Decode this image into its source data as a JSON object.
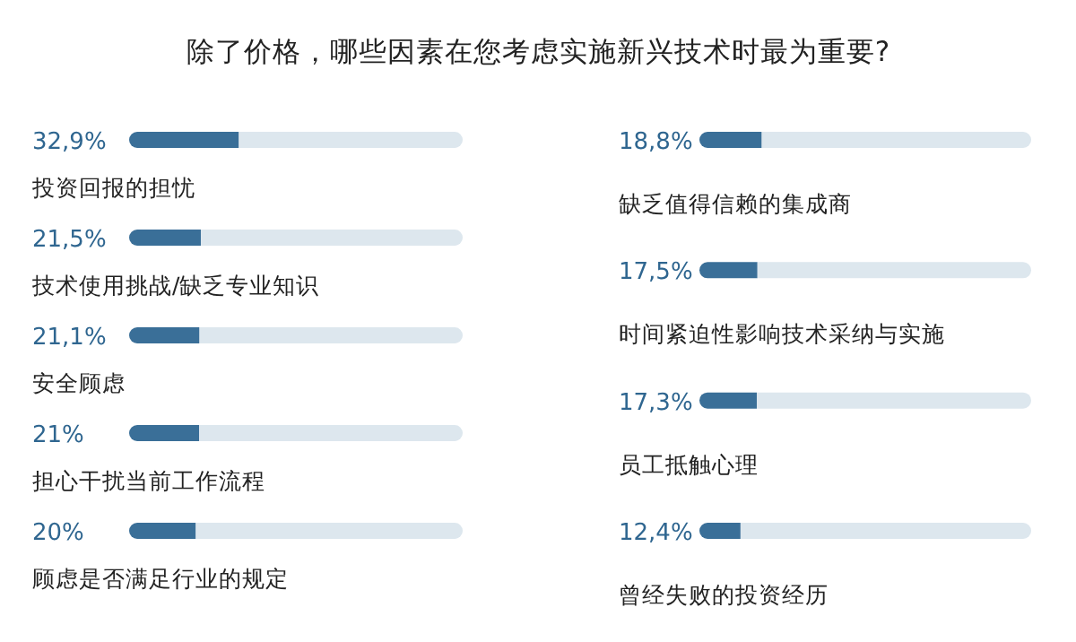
{
  "chart_data": [
    {
      "type": "bar",
      "orientation": "horizontal",
      "stacked": true,
      "title": "除了价格，哪些因素在您考虑实施新兴技术时最为重要?",
      "categories": [
        "投资回报的担忧",
        "技术使用挑战/缺乏专业知识",
        "安全顾虑",
        "担心干扰当前工作流程",
        "顾虑是否满足行业的规定"
      ],
      "series": [
        {
          "color": "#3a6f98",
          "values": [
            32.9,
            21.5,
            21.1,
            21,
            20
          ],
          "value_labels": [
            "32,9%",
            "21,5%",
            "21,1%",
            "21%",
            "20%"
          ]
        },
        {
          "color": "#dde7ee",
          "values": [
            67.1,
            78.5,
            78.9,
            79,
            80
          ]
        }
      ],
      "xlim": [
        0,
        100
      ]
    },
    {
      "type": "bar",
      "orientation": "horizontal",
      "stacked": true,
      "categories": [
        "缺乏值得信赖的集成商",
        "时间紧迫性影响技术采纳与实施",
        "员工抵触心理",
        "曾经失败的投资经历"
      ],
      "series": [
        {
          "color": "#3a6f98",
          "values": [
            18.8,
            17.5,
            17.3,
            12.4
          ],
          "value_labels": [
            "18,8%",
            "17,5%",
            "17,3%",
            "12,4%"
          ]
        },
        {
          "color": "#dde7ee",
          "values": [
            81.2,
            82.5,
            82.7,
            87.6
          ]
        }
      ],
      "xlim": [
        0,
        100
      ]
    }
  ]
}
